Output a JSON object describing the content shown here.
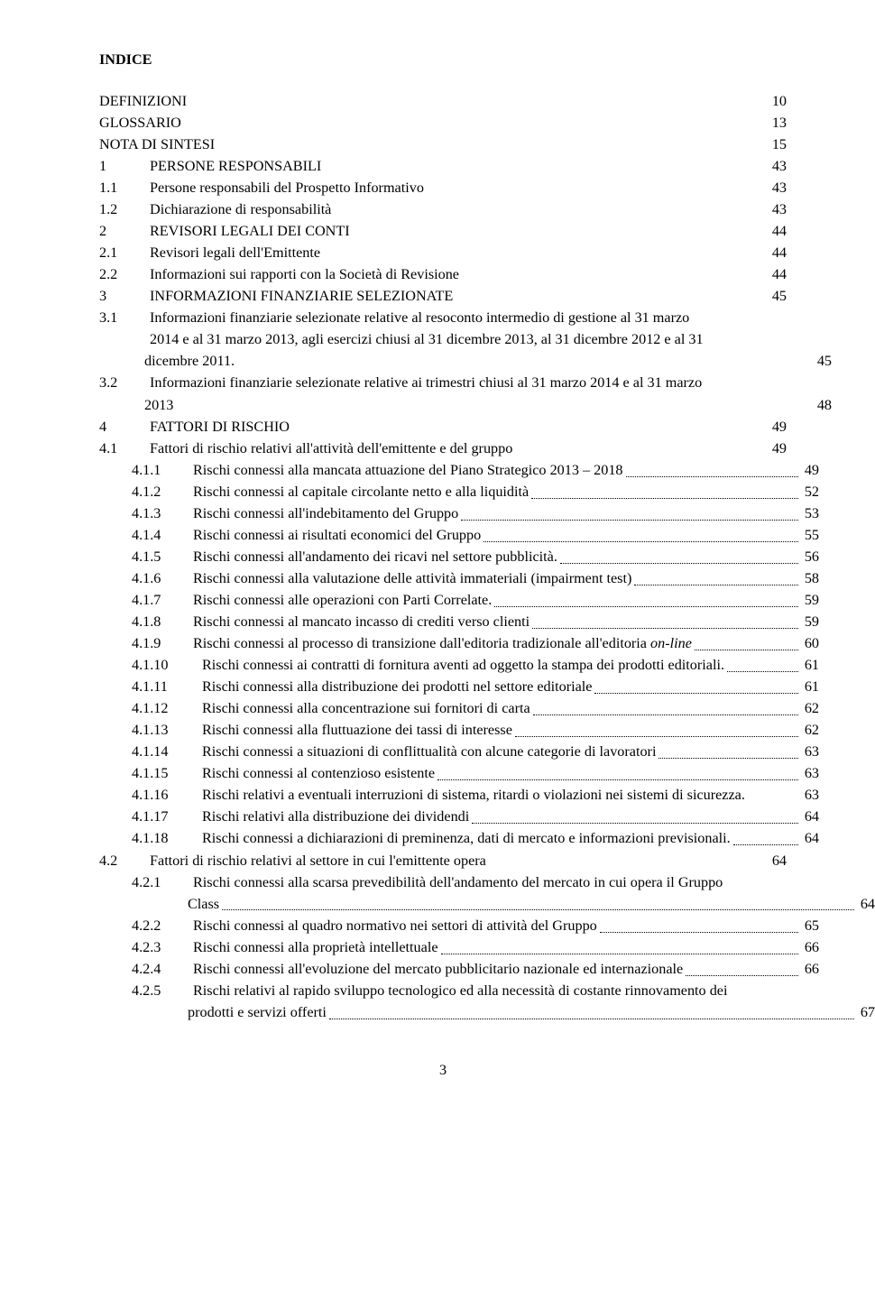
{
  "heading": "INDICE",
  "footer_page": "3",
  "entries": [
    {
      "num": "",
      "label": "DEFINIZIONI",
      "page": "10",
      "dotted": false,
      "indent": "indent-0",
      "numw": "0"
    },
    {
      "num": "",
      "label": "GLOSSARIO",
      "page": "13",
      "dotted": false,
      "indent": "indent-0",
      "numw": "0"
    },
    {
      "num": "",
      "label": "NOTA DI SINTESI",
      "page": "15",
      "dotted": false,
      "indent": "indent-0",
      "numw": "0"
    },
    {
      "num": "1",
      "label": "PERSONE RESPONSABILI",
      "page": "43",
      "dotted": false,
      "indent": "indent-0"
    },
    {
      "num": "1.1",
      "label": "Persone responsabili del Prospetto Informativo",
      "page": "43",
      "dotted": false,
      "indent": "indent-1"
    },
    {
      "num": "1.2",
      "label": "Dichiarazione di responsabilità",
      "page": "43",
      "dotted": false,
      "indent": "indent-1"
    },
    {
      "num": "2",
      "label": "REVISORI LEGALI DEI CONTI",
      "page": "44",
      "dotted": false,
      "indent": "indent-0"
    },
    {
      "num": "2.1",
      "label": "Revisori legali dell'Emittente",
      "page": "44",
      "dotted": false,
      "indent": "indent-1"
    },
    {
      "num": "2.2",
      "label": "Informazioni sui rapporti con la Società di Revisione",
      "page": "44",
      "dotted": false,
      "indent": "indent-1"
    },
    {
      "num": "3",
      "label": "INFORMAZIONI FINANZIARIE SELEZIONATE",
      "page": "45",
      "dotted": false,
      "indent": "indent-0"
    },
    {
      "num": "3.1",
      "label_lines": [
        "Informazioni finanziarie selezionate relative al resoconto intermedio di gestione al 31 marzo",
        "2014 e al 31 marzo 2013, agli esercizi chiusi al 31 dicembre 2013, al 31 dicembre 2012 e al 31"
      ],
      "last_line": "dicembre 2011.",
      "page": "45",
      "dotted": false,
      "indent": "indent-1",
      "multiline": true
    },
    {
      "num": "3.2",
      "label_lines": [
        "Informazioni finanziarie selezionate relative ai trimestri chiusi al 31 marzo 2014 e al 31 marzo"
      ],
      "last_line": "2013",
      "page": "48",
      "dotted": false,
      "indent": "indent-1",
      "multiline": true
    },
    {
      "num": "4",
      "label": "FATTORI DI RISCHIO",
      "page": "49",
      "dotted": false,
      "indent": "indent-0"
    },
    {
      "num": "4.1",
      "label": "Fattori di rischio relativi all'attività dell'emittente e del gruppo",
      "page": "49",
      "dotted": false,
      "indent": "indent-1"
    },
    {
      "num": "4.1.1",
      "label": "Rischi connessi alla mancata attuazione del Piano Strategico 2013 – 2018",
      "page": "49",
      "dotted": true,
      "indent": "indent-2"
    },
    {
      "num": "4.1.2",
      "label": "Rischi connessi al capitale circolante netto e alla liquidità",
      "page": "52",
      "dotted": true,
      "indent": "indent-2"
    },
    {
      "num": "4.1.3",
      "label": "Rischi connessi all'indebitamento del Gruppo",
      "page": "53",
      "dotted": true,
      "indent": "indent-2"
    },
    {
      "num": "4.1.4",
      "label": "Rischi connessi ai risultati economici del Gruppo",
      "page": "55",
      "dotted": true,
      "indent": "indent-2"
    },
    {
      "num": "4.1.5",
      "label": "Rischi connessi all'andamento dei ricavi nel settore pubblicità.",
      "page": "56",
      "dotted": true,
      "indent": "indent-2"
    },
    {
      "num": "4.1.6",
      "label": "Rischi connessi alla valutazione delle attività immateriali (impairment test)",
      "page": "58",
      "dotted": true,
      "indent": "indent-2"
    },
    {
      "num": "4.1.7",
      "label": "Rischi connessi alle operazioni con Parti Correlate.",
      "page": "59",
      "dotted": true,
      "indent": "indent-2"
    },
    {
      "num": "4.1.8",
      "label": "Rischi connessi al mancato incasso di crediti verso clienti",
      "page": "59",
      "dotted": true,
      "indent": "indent-2"
    },
    {
      "num": "4.1.9",
      "label_html": "Rischi connessi al processo di transizione dall'editoria tradizionale all'editoria <em class='it'>on-line</em>",
      "page": "60",
      "dotted": true,
      "indent": "indent-2"
    },
    {
      "num": "4.1.10",
      "label": "Rischi connessi ai contratti di fornitura aventi ad oggetto la stampa dei prodotti editoriali.",
      "page": "61",
      "dotted": true,
      "indent": "indent-2b"
    },
    {
      "num": "4.1.11",
      "label": "Rischi connessi alla distribuzione dei prodotti nel settore editoriale",
      "page": "61",
      "dotted": true,
      "indent": "indent-2b"
    },
    {
      "num": "4.1.12",
      "label": "Rischi connessi alla concentrazione sui fornitori di carta",
      "page": "62",
      "dotted": true,
      "indent": "indent-2b"
    },
    {
      "num": "4.1.13",
      "label": "Rischi connessi alla fluttuazione dei tassi di interesse",
      "page": "62",
      "dotted": true,
      "indent": "indent-2b"
    },
    {
      "num": "4.1.14",
      "label": "Rischi connessi a situazioni di conflittualità con alcune categorie di lavoratori",
      "page": "63",
      "dotted": true,
      "indent": "indent-2b"
    },
    {
      "num": "4.1.15",
      "label": "Rischi connessi al contenzioso esistente",
      "page": "63",
      "dotted": true,
      "indent": "indent-2b"
    },
    {
      "num": "4.1.16",
      "label": "Rischi relativi a eventuali interruzioni di sistema, ritardi o violazioni nei sistemi di sicurezza.",
      "page": "63",
      "dotted": false,
      "indent": "indent-2b"
    },
    {
      "num": "4.1.17",
      "label": "Rischi relativi alla distribuzione dei dividendi",
      "page": "64",
      "dotted": true,
      "indent": "indent-2b"
    },
    {
      "num": "4.1.18",
      "label": "Rischi connessi a dichiarazioni di preminenza, dati di mercato e informazioni previsionali.",
      "page": "64",
      "dotted": true,
      "indent": "indent-2b"
    },
    {
      "num": "4.2",
      "label": "Fattori di rischio relativi al settore in cui l'emittente opera",
      "page": "64",
      "dotted": false,
      "indent": "indent-1"
    },
    {
      "num": "4.2.1",
      "label_lines": [
        "Rischi connessi alla scarsa prevedibilità dell'andamento del mercato in cui opera il Gruppo"
      ],
      "last_line": "Class",
      "page": "64",
      "dotted": true,
      "indent": "indent-2",
      "multiline": true,
      "cont_pad": "98"
    },
    {
      "num": "4.2.2",
      "label": "Rischi connessi al quadro normativo nei settori di attività del Gruppo",
      "page": "65",
      "dotted": true,
      "indent": "indent-2"
    },
    {
      "num": "4.2.3",
      "label": "Rischi connessi alla proprietà intellettuale",
      "page": "66",
      "dotted": true,
      "indent": "indent-2"
    },
    {
      "num": "4.2.4",
      "label": "Rischi connessi all'evoluzione del mercato pubblicitario nazionale ed internazionale",
      "page": "66",
      "dotted": true,
      "indent": "indent-2"
    },
    {
      "num": "4.2.5",
      "label_lines": [
        "Rischi relativi al rapido sviluppo tecnologico ed alla necessità di costante rinnovamento dei"
      ],
      "last_line": "prodotti e servizi offerti",
      "page": "67",
      "dotted": true,
      "indent": "indent-2",
      "multiline": true,
      "cont_pad": "98"
    }
  ]
}
